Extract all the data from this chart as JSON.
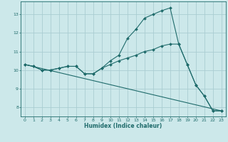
{
  "xlabel": "Humidex (Indice chaleur)",
  "bg_color": "#cce8ea",
  "grid_color": "#aacdd2",
  "line_color": "#1f6b6b",
  "xlim": [
    -0.5,
    23.5
  ],
  "ylim": [
    7.5,
    13.7
  ],
  "yticks": [
    8,
    9,
    10,
    11,
    12,
    13
  ],
  "xticks": [
    0,
    1,
    2,
    3,
    4,
    5,
    6,
    7,
    8,
    9,
    10,
    11,
    12,
    13,
    14,
    15,
    16,
    17,
    18,
    19,
    20,
    21,
    22,
    23
  ],
  "line1_x": [
    0,
    1,
    2,
    3,
    4,
    5,
    6,
    7,
    8,
    9,
    10,
    11,
    12,
    13,
    14,
    15,
    16,
    17,
    18,
    19,
    20,
    21,
    22,
    23
  ],
  "line1_y": [
    10.3,
    10.2,
    10.0,
    10.0,
    10.1,
    10.2,
    10.2,
    9.8,
    9.8,
    10.1,
    10.5,
    10.8,
    11.7,
    12.2,
    12.8,
    13.0,
    13.2,
    13.35,
    11.4,
    10.3,
    9.2,
    8.6,
    7.8,
    7.8
  ],
  "line2_x": [
    0,
    1,
    2,
    3,
    4,
    5,
    6,
    7,
    8,
    9,
    10,
    11,
    12,
    13,
    14,
    15,
    16,
    17,
    18,
    19,
    20,
    21,
    22,
    23
  ],
  "line2_y": [
    10.3,
    10.2,
    10.0,
    10.0,
    10.1,
    10.2,
    10.2,
    9.8,
    9.8,
    10.1,
    10.3,
    10.5,
    10.65,
    10.8,
    11.0,
    11.1,
    11.3,
    11.4,
    11.4,
    10.3,
    9.2,
    8.6,
    7.8,
    7.8
  ],
  "line3_x": [
    0,
    23
  ],
  "line3_y": [
    10.3,
    7.8
  ]
}
